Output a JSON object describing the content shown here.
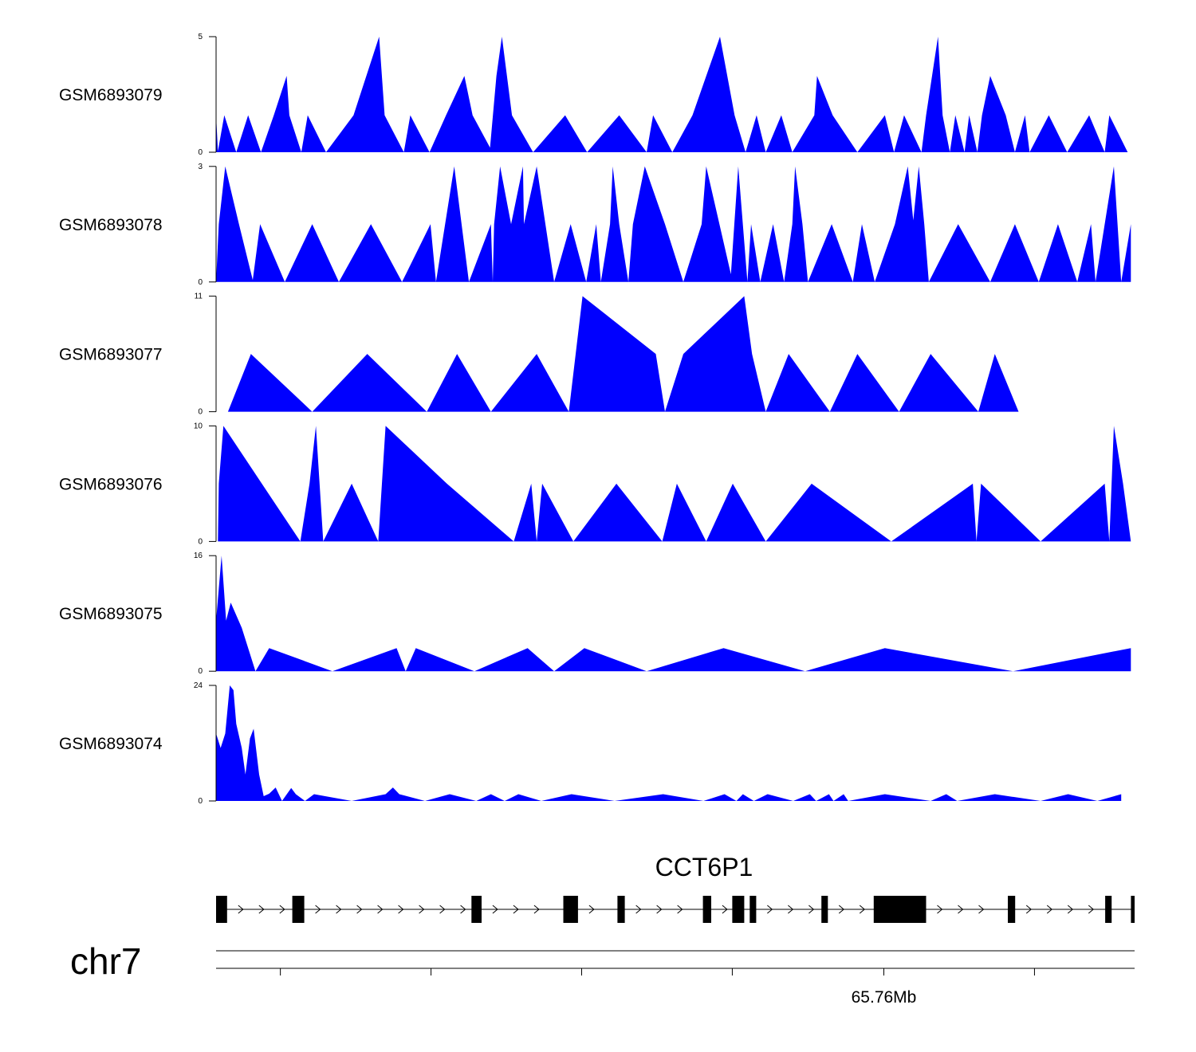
{
  "chart_data": {
    "type": "area",
    "title": "",
    "colors": {
      "signal": "#0000ff",
      "gene": "#000000",
      "axis": "#000000"
    },
    "tracks": [
      {
        "name": "GSM6893079",
        "ymax": 5,
        "ymin": 0,
        "ymax_label": "5",
        "ymin_label": "0",
        "x": [
          0,
          0.002,
          0.009,
          0.022,
          0.035,
          0.049,
          0.063,
          0.077,
          0.08,
          0.093,
          0.1,
          0.12,
          0.15,
          0.178,
          0.184,
          0.205,
          0.212,
          0.233,
          0.251,
          0.271,
          0.28,
          0.299,
          0.306,
          0.312,
          0.323,
          0.346,
          0.381,
          0.405,
          0.44,
          0.47,
          0.477,
          0.498,
          0.52,
          0.55,
          0.566,
          0.578,
          0.59,
          0.6,
          0.617,
          0.629,
          0.653,
          0.656,
          0.673,
          0.7,
          0.73,
          0.74,
          0.751,
          0.77,
          0.775,
          0.788,
          0.793,
          0.801,
          0.807,
          0.817,
          0.822,
          0.831,
          0.836,
          0.845,
          0.862,
          0.872,
          0.883,
          0.888,
          0.909,
          0.929,
          0.953,
          0.97,
          0.975,
          0.995
        ],
        "y": [
          1.6,
          0.05,
          1.6,
          0,
          1.6,
          0,
          1.6,
          3.3,
          1.6,
          0,
          1.6,
          0,
          1.6,
          5,
          1.6,
          0,
          1.6,
          0,
          1.6,
          3.3,
          1.6,
          0.2,
          3.3,
          5,
          1.6,
          0,
          1.6,
          0,
          1.6,
          0,
          1.6,
          0,
          1.6,
          5,
          1.6,
          0,
          1.6,
          0,
          1.6,
          0,
          1.6,
          3.3,
          1.6,
          0,
          1.6,
          0,
          1.6,
          0,
          1.6,
          5,
          1.6,
          0,
          1.6,
          0,
          1.6,
          0,
          1.6,
          3.3,
          1.6,
          0,
          1.6,
          0,
          1.6,
          0,
          1.6,
          0,
          1.6,
          0
        ]
      },
      {
        "name": "GSM6893078",
        "ymax": 3,
        "ymin": 0,
        "ymax_label": "3",
        "ymin_label": "0",
        "x": [
          0,
          0.003,
          0.01,
          0.025,
          0.04,
          0.048,
          0.075,
          0.105,
          0.134,
          0.169,
          0.203,
          0.234,
          0.24,
          0.26,
          0.276,
          0.3,
          0.302,
          0.3035,
          0.31,
          0.322,
          0.335,
          0.336,
          0.35,
          0.369,
          0.387,
          0.404,
          0.415,
          0.42,
          0.43,
          0.433,
          0.44,
          0.45,
          0.455,
          0.468,
          0.49,
          0.51,
          0.53,
          0.535,
          0.562,
          0.57,
          0.58,
          0.584,
          0.594,
          0.608,
          0.62,
          0.629,
          0.632,
          0.64,
          0.646,
          0.672,
          0.695,
          0.705,
          0.719,
          0.741,
          0.755,
          0.761,
          0.767,
          0.773,
          0.778,
          0.81,
          0.845,
          0.872,
          0.898,
          0.919,
          0.94,
          0.955,
          0.96,
          0.98,
          0.984,
          0.988,
          0.9985
        ],
        "y": [
          0,
          1.5,
          3,
          1.5,
          0.05,
          1.5,
          0,
          1.5,
          0,
          1.5,
          0,
          1.5,
          0,
          3,
          0,
          1.5,
          0,
          1.5,
          3,
          1.5,
          3,
          1.5,
          3,
          0,
          1.5,
          0,
          1.5,
          0,
          1.5,
          3,
          1.5,
          0,
          1.5,
          3,
          1.5,
          0,
          1.5,
          3,
          0.2,
          3,
          0,
          1.5,
          0,
          1.5,
          0,
          1.5,
          3,
          1.5,
          0,
          1.5,
          0,
          1.5,
          0,
          1.5,
          3,
          1.6,
          3,
          1.5,
          0,
          1.5,
          0,
          1.5,
          0,
          1.5,
          0,
          1.5,
          0,
          3,
          1.5,
          0,
          1.5
        ]
      },
      {
        "name": "GSM6893077",
        "ymax": 11,
        "ymin": 0,
        "ymax_label": "11",
        "ymin_label": "0",
        "x": [
          0.013,
          0.038,
          0.105,
          0.165,
          0.23,
          0.263,
          0.3,
          0.35,
          0.385,
          0.4,
          0.48,
          0.49,
          0.51,
          0.5765,
          0.585,
          0.6,
          0.625,
          0.67,
          0.7,
          0.7455,
          0.78,
          0.832,
          0.85,
          0.876,
          0.92
        ],
        "y": [
          0,
          5.5,
          0,
          5.5,
          0,
          5.5,
          0,
          5.5,
          0,
          11,
          5.5,
          0,
          5.5,
          11,
          5.5,
          0,
          5.5,
          0,
          5.5,
          0,
          5.5,
          0,
          5.5,
          0,
          0
        ]
      },
      {
        "name": "GSM6893076",
        "ymax": 10,
        "ymin": 0,
        "ymax_label": "10",
        "ymin_label": "0",
        "x": [
          0.002,
          0.003,
          0.008,
          0.05,
          0.092,
          0.102,
          0.109,
          0.117,
          0.148,
          0.177,
          0.185,
          0.252,
          0.325,
          0.344,
          0.35,
          0.356,
          0.39,
          0.437,
          0.487,
          0.503,
          0.535,
          0.564,
          0.6,
          0.65,
          0.737,
          0.826,
          0.83,
          0.835,
          0.9,
          0.97,
          0.975,
          0.98,
          0.99,
          0.9985
        ],
        "y": [
          0,
          5,
          10,
          5,
          0,
          5,
          10,
          0,
          5,
          0,
          10,
          5,
          0,
          5,
          0,
          5,
          0,
          5,
          0,
          5,
          0,
          5,
          0,
          5,
          0,
          5,
          0,
          5,
          0,
          5,
          0,
          10,
          5,
          0
        ]
      },
      {
        "name": "GSM6893075",
        "ymax": 16,
        "ymin": 0,
        "ymax_label": "16",
        "ymin_label": "0",
        "x": [
          0,
          0.006,
          0.011,
          0.016,
          0.028,
          0.043,
          0.058,
          0.127,
          0.197,
          0.207,
          0.218,
          0.282,
          0.34,
          0.369,
          0.402,
          0.47,
          0.554,
          0.643,
          0.73,
          0.87,
          0.9985
        ],
        "y": [
          7,
          16,
          7,
          9.5,
          6,
          0,
          3.2,
          0,
          3.2,
          0,
          3.2,
          0,
          3.2,
          0,
          3.2,
          0,
          3.2,
          0,
          3.2,
          0,
          3.2
        ]
      },
      {
        "name": "GSM6893074",
        "ymax": 24,
        "ymin": 0,
        "ymax_label": "24",
        "ymin_label": "0",
        "x": [
          0,
          0.005,
          0.01,
          0.015,
          0.019,
          0.022,
          0.028,
          0.032,
          0.037,
          0.041,
          0.047,
          0.052,
          0.058,
          0.065,
          0.072,
          0.082,
          0.087,
          0.097,
          0.107,
          0.148,
          0.185,
          0.193,
          0.2,
          0.228,
          0.255,
          0.284,
          0.3,
          0.315,
          0.33,
          0.355,
          0.388,
          0.435,
          0.488,
          0.532,
          0.555,
          0.568,
          0.575,
          0.587,
          0.602,
          0.63,
          0.648,
          0.655,
          0.669,
          0.674,
          0.685,
          0.69,
          0.73,
          0.78,
          0.797,
          0.809,
          0.85,
          0.9,
          0.93,
          0.962,
          0.988
        ],
        "y": [
          14,
          11,
          14,
          24,
          23,
          16,
          11,
          5.5,
          13,
          15,
          5.5,
          1,
          1.5,
          2.8,
          0,
          2.7,
          1.4,
          0,
          1.4,
          0,
          1.4,
          2.8,
          1.4,
          0,
          1.4,
          0,
          1.4,
          0,
          1.4,
          0,
          1.4,
          0,
          1.4,
          0,
          1.4,
          0,
          1.4,
          0,
          1.4,
          0,
          1.4,
          0,
          1.4,
          0,
          1.4,
          0,
          1.4,
          0,
          1.4,
          0,
          1.4,
          0,
          1.4,
          0,
          1.4
        ]
      }
    ],
    "gene": {
      "name": "CCT6P1",
      "exons": [
        [
          0,
          0.012
        ],
        [
          0.083,
          0.096
        ],
        [
          0.278,
          0.289
        ],
        [
          0.378,
          0.394
        ],
        [
          0.437,
          0.445
        ],
        [
          0.53,
          0.539
        ],
        [
          0.562,
          0.575
        ],
        [
          0.581,
          0.588
        ],
        [
          0.659,
          0.666
        ],
        [
          0.716,
          0.773
        ],
        [
          0.862,
          0.87
        ],
        [
          0.968,
          0.975
        ],
        [
          0.996,
          1.0
        ]
      ]
    },
    "axis": {
      "chromosome": "chr7",
      "tick_positions": [
        0.07,
        0.234,
        0.398,
        0.562,
        0.727,
        0.891
      ],
      "tick_labels": [
        "",
        "",
        "",
        "",
        "65.76Mb",
        ""
      ]
    }
  }
}
